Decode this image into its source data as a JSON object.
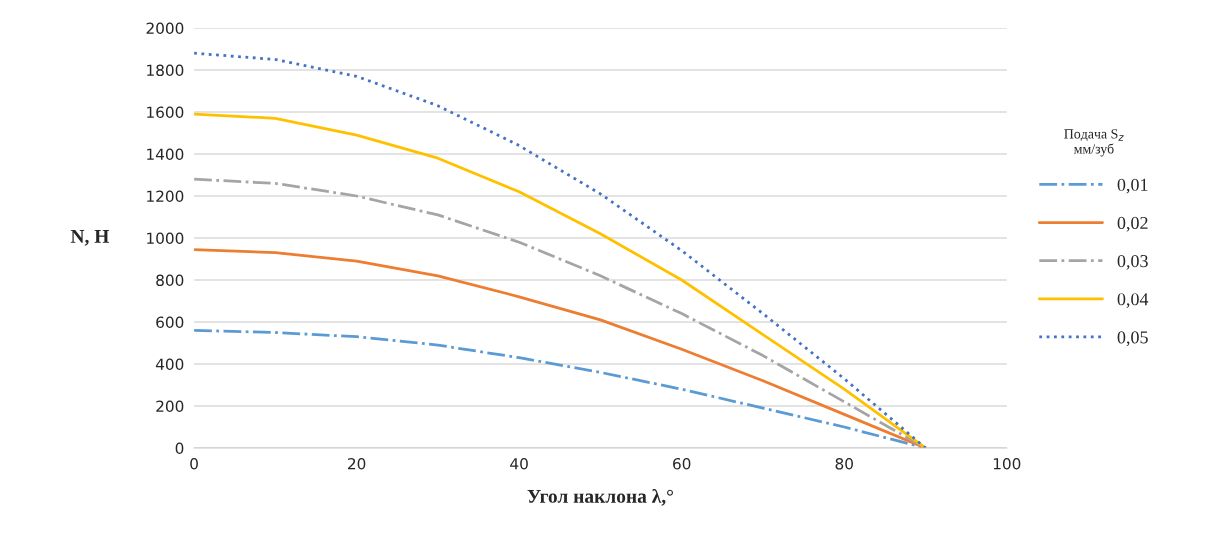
{
  "chart_data": {
    "type": "line",
    "xlabel": "Угол наклона λ,°",
    "ylabel": "N, Н",
    "legend_title": "Подача S$_{z}$\nмм/зуб",
    "x": [
      0,
      10,
      20,
      30,
      40,
      50,
      60,
      70,
      80,
      90
    ],
    "series": [
      {
        "name": "0,01",
        "color": "#5b9bd5",
        "line_style": "dashdot",
        "values": [
          560,
          550,
          530,
          490,
          430,
          360,
          280,
          190,
          100,
          0
        ]
      },
      {
        "name": "0,02",
        "color": "#ed7d31",
        "line_style": "solid",
        "values": [
          945,
          930,
          890,
          820,
          720,
          610,
          470,
          320,
          160,
          0
        ]
      },
      {
        "name": "0,03",
        "color": "#a5a5a5",
        "line_style": "dashdot",
        "values": [
          1280,
          1260,
          1200,
          1110,
          980,
          820,
          640,
          440,
          220,
          0
        ]
      },
      {
        "name": "0,04",
        "color": "#ffc000",
        "line_style": "solid",
        "values": [
          1590,
          1570,
          1490,
          1380,
          1220,
          1020,
          800,
          540,
          280,
          0
        ]
      },
      {
        "name": "0,05",
        "color": "#4472c4",
        "line_style": "dotted",
        "values": [
          1880,
          1850,
          1770,
          1630,
          1440,
          1210,
          940,
          640,
          330,
          0
        ]
      }
    ],
    "xlim": [
      0,
      100
    ],
    "xticks": [
      0,
      20,
      40,
      60,
      80,
      100
    ],
    "ylim": [
      0,
      2000
    ],
    "yticks": [
      0,
      200,
      400,
      600,
      800,
      1000,
      1200,
      1400,
      1600,
      1800,
      2000
    ],
    "grid": "y",
    "legend": "right",
    "marker": "none"
  }
}
